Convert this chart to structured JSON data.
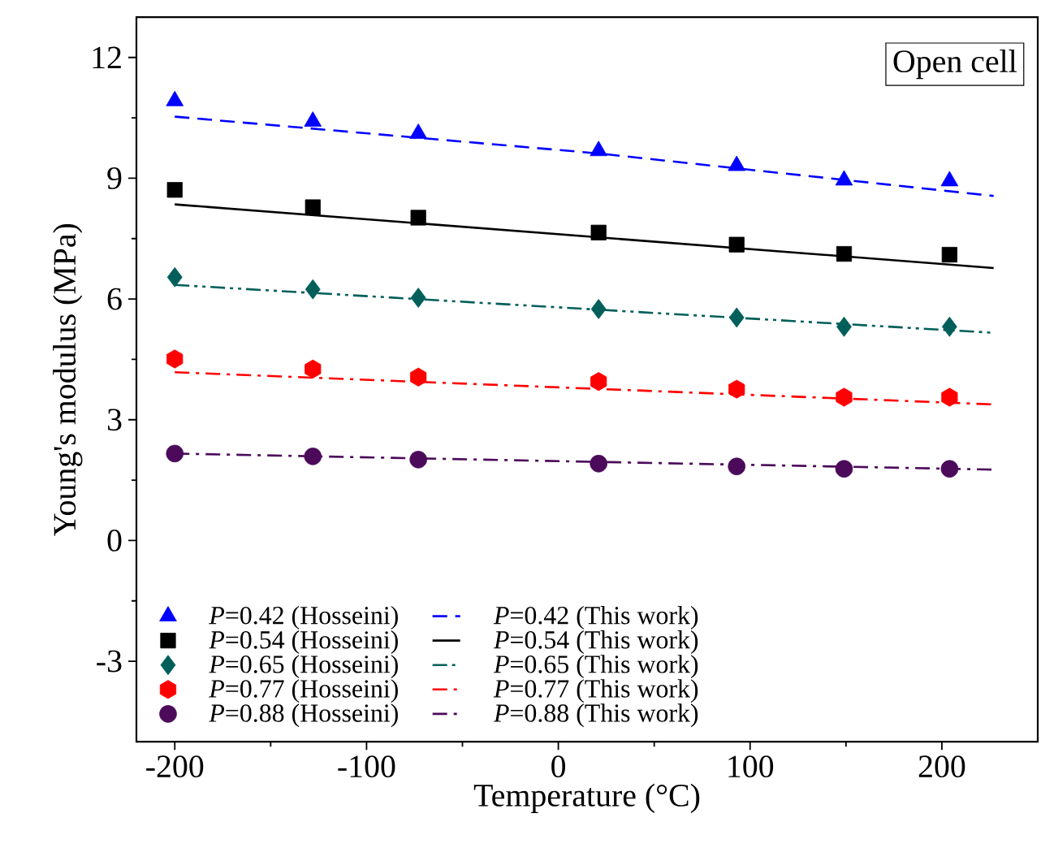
{
  "chart_data": {
    "type": "scatter",
    "xlabel": "Temperature (°C)",
    "ylabel": "Young's modulus (MPa)",
    "xlim": [
      -220,
      250
    ],
    "xticks": [
      -200,
      -100,
      0,
      100,
      200
    ],
    "ylim": [
      -5,
      13
    ],
    "yticks": [
      -3,
      0,
      3,
      6,
      9,
      12
    ],
    "grid": false,
    "legend": "bottom left",
    "annotations": [
      "Open cell"
    ],
    "series": [
      {
        "name": "*P*=0.42 (Hosseini)",
        "marker": "triangle",
        "color": "#0000ff",
        "x": [
          -200,
          -128,
          -73,
          21,
          93,
          149,
          204
        ],
        "values": [
          10.92,
          10.41,
          10.11,
          9.68,
          9.31,
          8.95,
          8.93
        ]
      },
      {
        "name": "*P*=0.42 (This work)",
        "type": "line",
        "line_style": "dashed",
        "color": "#0000ff",
        "x": [
          -200,
          20,
          227
        ],
        "values": [
          10.53,
          9.62,
          8.56
        ]
      },
      {
        "name": "*P*=0.54 (Hosseini)",
        "marker": "square",
        "color": "#000000",
        "x": [
          -200,
          -128,
          -73,
          21,
          93,
          149,
          204
        ],
        "values": [
          8.71,
          8.28,
          8.02,
          7.65,
          7.35,
          7.12,
          7.1
        ]
      },
      {
        "name": "*P*=0.54 (This work)",
        "type": "line",
        "line_style": "solid",
        "color": "#000000",
        "x": [
          -200,
          227
        ],
        "values": [
          8.35,
          6.77
        ]
      },
      {
        "name": "*P*=0.65 (Hosseini)",
        "marker": "diamond",
        "color": "#005f5a",
        "x": [
          -200,
          -128,
          -73,
          21,
          93,
          149,
          204
        ],
        "values": [
          6.54,
          6.24,
          6.03,
          5.75,
          5.54,
          5.31,
          5.31
        ]
      },
      {
        "name": "*P*=0.65 (This work)",
        "type": "line",
        "line_style": "dashdotdot",
        "color": "#005f5a",
        "x": [
          -200,
          227
        ],
        "values": [
          6.35,
          5.16
        ]
      },
      {
        "name": "*P*=0.77 (Hosseini)",
        "color": "#ff0000",
        "x": [
          -200,
          -128,
          -73,
          21,
          93,
          149,
          204
        ],
        "values": [
          4.51,
          4.26,
          4.06,
          3.95,
          3.76,
          3.56,
          3.56
        ]
      },
      {
        "name": "*P*=0.77 (This work)",
        "type": "line",
        "line_style": "dashdot",
        "color": "#ff0000",
        "x": [
          -200,
          227
        ],
        "values": [
          4.18,
          3.38
        ]
      },
      {
        "name": "*P*=0.88 (Hosseini)",
        "marker": "circle",
        "color": "#4b0a5a",
        "x": [
          -200,
          -128,
          -73,
          21,
          93,
          149,
          204
        ],
        "values": [
          2.16,
          2.09,
          2.01,
          1.91,
          1.84,
          1.78,
          1.78
        ]
      },
      {
        "name": "*P*=0.88 (This work)",
        "type": "line",
        "line_style": "dashdot",
        "color": "#4b0a5a",
        "x": [
          -200,
          227
        ],
        "values": [
          2.16,
          1.76
        ]
      }
    ]
  }
}
